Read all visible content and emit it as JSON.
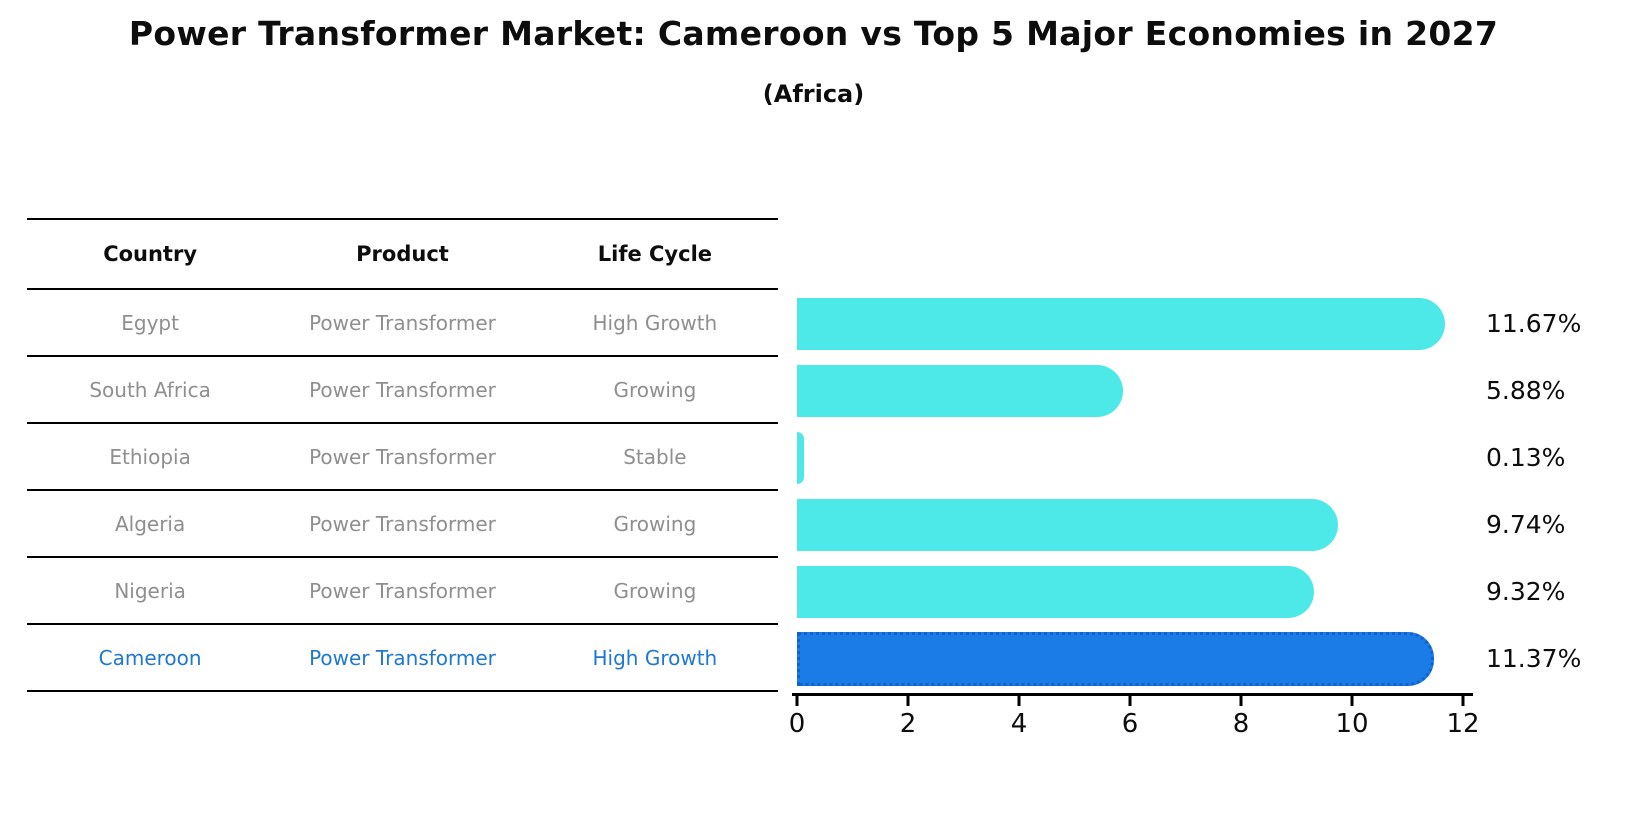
{
  "title": "Power Transformer Market: Cameroon vs Top 5 Major Economies in 2027",
  "subtitle": "(Africa)",
  "table": {
    "headers": [
      "Country",
      "Product",
      "Life Cycle"
    ],
    "rows": [
      {
        "country": "Egypt",
        "product": "Power Transformer",
        "life_cycle": "High Growth",
        "highlight": false
      },
      {
        "country": "South Africa",
        "product": "Power Transformer",
        "life_cycle": "Growing",
        "highlight": false
      },
      {
        "country": "Ethiopia",
        "product": "Power Transformer",
        "life_cycle": "Stable",
        "highlight": false
      },
      {
        "country": "Algeria",
        "product": "Power Transformer",
        "life_cycle": "Growing",
        "highlight": false
      },
      {
        "country": "Nigeria",
        "product": "Power Transformer",
        "life_cycle": "Growing",
        "highlight": false
      },
      {
        "country": "Cameroon",
        "product": "Power Transformer",
        "life_cycle": "High Growth",
        "highlight": true
      }
    ]
  },
  "chart_data": {
    "type": "bar",
    "orientation": "horizontal",
    "title": "Power Transformer Market: Cameroon vs Top 5 Major Economies in 2027",
    "subtitle": "(Africa)",
    "categories": [
      "Egypt",
      "South Africa",
      "Ethiopia",
      "Algeria",
      "Nigeria",
      "Cameroon"
    ],
    "values": [
      11.67,
      5.88,
      0.13,
      9.74,
      9.32,
      11.37
    ],
    "value_labels": [
      "11.67%",
      "5.88%",
      "0.13%",
      "9.74%",
      "9.32%",
      "11.37%"
    ],
    "xlim": [
      0,
      12
    ],
    "xticks": [
      0,
      2,
      4,
      6,
      8,
      10,
      12
    ],
    "grid": false,
    "legend": "none",
    "highlight_index": 5,
    "highlight_category": "Cameroon"
  },
  "colors": {
    "bar_color": "#4DE8E8",
    "highlight_color": "#1B7CE8",
    "highlight_border": "#1460CC",
    "row_text": "#8F8F8F",
    "highlight_text": "#1E78D2",
    "axis_color": "#000000"
  }
}
